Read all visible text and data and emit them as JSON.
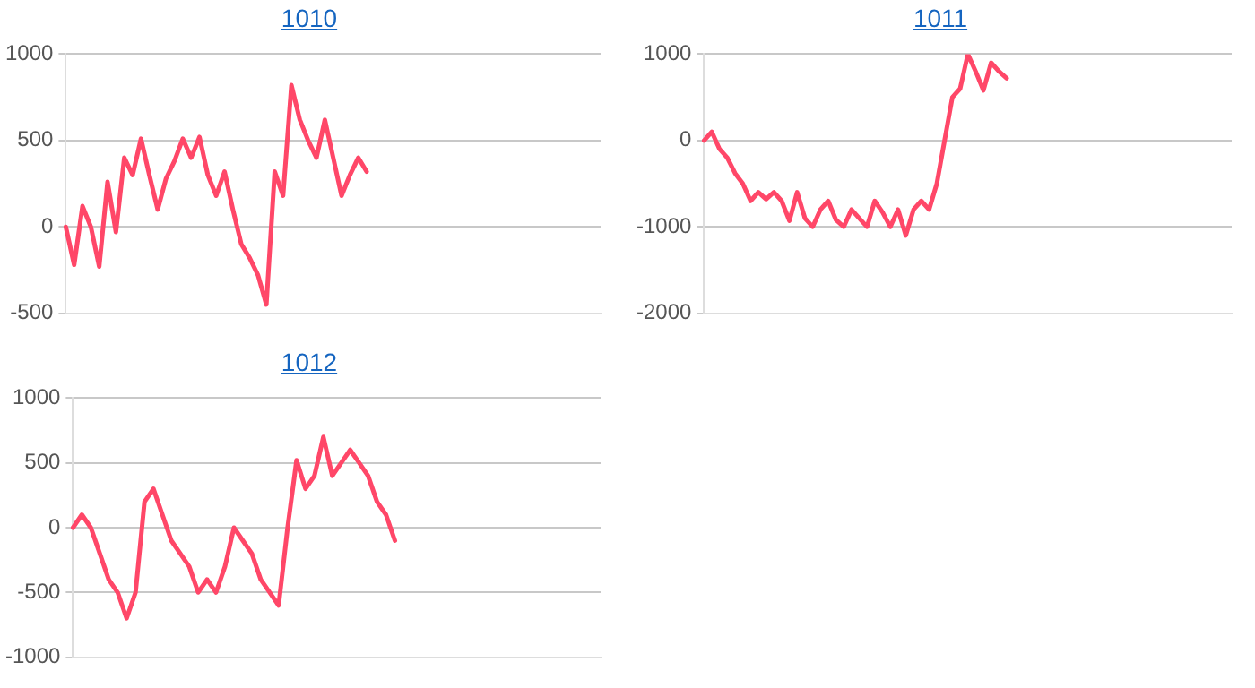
{
  "chart_data": [
    {
      "type": "line",
      "title": "1010",
      "categories": [
        null,
        null,
        null,
        null,
        null,
        null,
        null,
        null,
        null,
        null,
        null,
        null,
        null,
        null,
        null,
        null,
        null,
        null,
        null,
        null,
        null,
        null,
        null,
        null,
        null,
        null,
        null,
        null,
        null,
        null,
        null,
        null,
        null,
        null,
        null,
        null,
        null,
        null,
        null,
        null,
        null,
        null,
        null,
        null,
        null,
        null,
        null,
        null,
        null,
        null,
        null,
        null,
        null,
        null,
        null,
        null,
        null,
        null,
        null,
        null,
        null,
        null,
        null,
        null,
        null
      ],
      "series": [
        {
          "color": "#ff4768",
          "values": [
            0,
            -220,
            120,
            0,
            -230,
            260,
            -30,
            400,
            300,
            510,
            300,
            100,
            280,
            380,
            510,
            400,
            520,
            300,
            180,
            320,
            100,
            -100,
            -180,
            -280,
            -450,
            320,
            180,
            820,
            620,
            500,
            400,
            620,
            400,
            180,
            300,
            400,
            320,
            null,
            null,
            null,
            null,
            null,
            null,
            null,
            null,
            null,
            null,
            null,
            null,
            null,
            null,
            null,
            null,
            null,
            null,
            null,
            null,
            null,
            null,
            null,
            null,
            null,
            null,
            null,
            null
          ]
        }
      ],
      "ylim": [
        -500,
        1000
      ],
      "yticks": [
        -500,
        0,
        500,
        1000
      ],
      "grid": "y",
      "tick_labels": "y",
      "marker": "none",
      "line_style": "solid",
      "legend": false
    },
    {
      "type": "line",
      "title": "1011",
      "categories": [
        null,
        null,
        null,
        null,
        null,
        null,
        null,
        null,
        null,
        null,
        null,
        null,
        null,
        null,
        null,
        null,
        null,
        null,
        null,
        null,
        null,
        null,
        null,
        null,
        null,
        null,
        null,
        null,
        null,
        null,
        null,
        null,
        null,
        null,
        null,
        null,
        null,
        null,
        null,
        null,
        null,
        null,
        null,
        null,
        null,
        null,
        null,
        null,
        null,
        null,
        null,
        null,
        null,
        null,
        null,
        null,
        null,
        null,
        null,
        null,
        null,
        null,
        null,
        null,
        null,
        null,
        null,
        null,
        null
      ],
      "series": [
        {
          "color": "#ff4768",
          "values": [
            0,
            100,
            -100,
            -200,
            -380,
            -500,
            -700,
            -600,
            -680,
            -600,
            -700,
            -930,
            -600,
            -900,
            -1000,
            -800,
            -700,
            -920,
            -1000,
            -800,
            -900,
            -1000,
            -700,
            -830,
            -1000,
            -800,
            -1100,
            -800,
            -700,
            -800,
            -500,
            0,
            500,
            600,
            1000,
            800,
            580,
            900,
            800,
            720,
            null,
            null,
            null,
            null,
            null,
            null,
            null,
            null,
            null,
            null,
            null,
            null,
            null,
            null,
            null,
            null,
            null,
            null,
            null,
            null,
            null,
            null,
            null,
            null,
            null,
            null,
            null,
            null,
            null
          ]
        }
      ],
      "ylim": [
        -2000,
        1000
      ],
      "yticks": [
        -2000,
        -1000,
        0,
        1000
      ],
      "grid": "y",
      "tick_labels": "y",
      "marker": "none",
      "line_style": "solid",
      "legend": false
    },
    {
      "type": "line",
      "title": "1012",
      "categories": [
        null,
        null,
        null,
        null,
        null,
        null,
        null,
        null,
        null,
        null,
        null,
        null,
        null,
        null,
        null,
        null,
        null,
        null,
        null,
        null,
        null,
        null,
        null,
        null,
        null,
        null,
        null,
        null,
        null,
        null,
        null,
        null,
        null,
        null,
        null,
        null,
        null,
        null,
        null,
        null,
        null,
        null,
        null,
        null,
        null,
        null,
        null,
        null,
        null,
        null,
        null,
        null,
        null,
        null,
        null,
        null,
        null,
        null,
        null,
        null
      ],
      "series": [
        {
          "color": "#ff4768",
          "values": [
            0,
            100,
            0,
            -200,
            -400,
            -500,
            -700,
            -500,
            200,
            300,
            100,
            -100,
            -200,
            -300,
            -500,
            -400,
            -500,
            -300,
            0,
            -100,
            -200,
            -400,
            -500,
            -600,
            0,
            520,
            300,
            400,
            700,
            400,
            500,
            600,
            500,
            400,
            200,
            100,
            -100,
            null,
            null,
            null,
            null,
            null,
            null,
            null,
            null,
            null,
            null,
            null,
            null,
            null,
            null,
            null,
            null,
            null,
            null,
            null,
            null,
            null,
            null,
            null
          ]
        }
      ],
      "ylim": [
        -1000,
        1000
      ],
      "yticks": [
        -1000,
        -500,
        0,
        500,
        1000
      ],
      "grid": "y",
      "tick_labels": "y",
      "marker": "none",
      "line_style": "solid",
      "legend": false
    }
  ]
}
